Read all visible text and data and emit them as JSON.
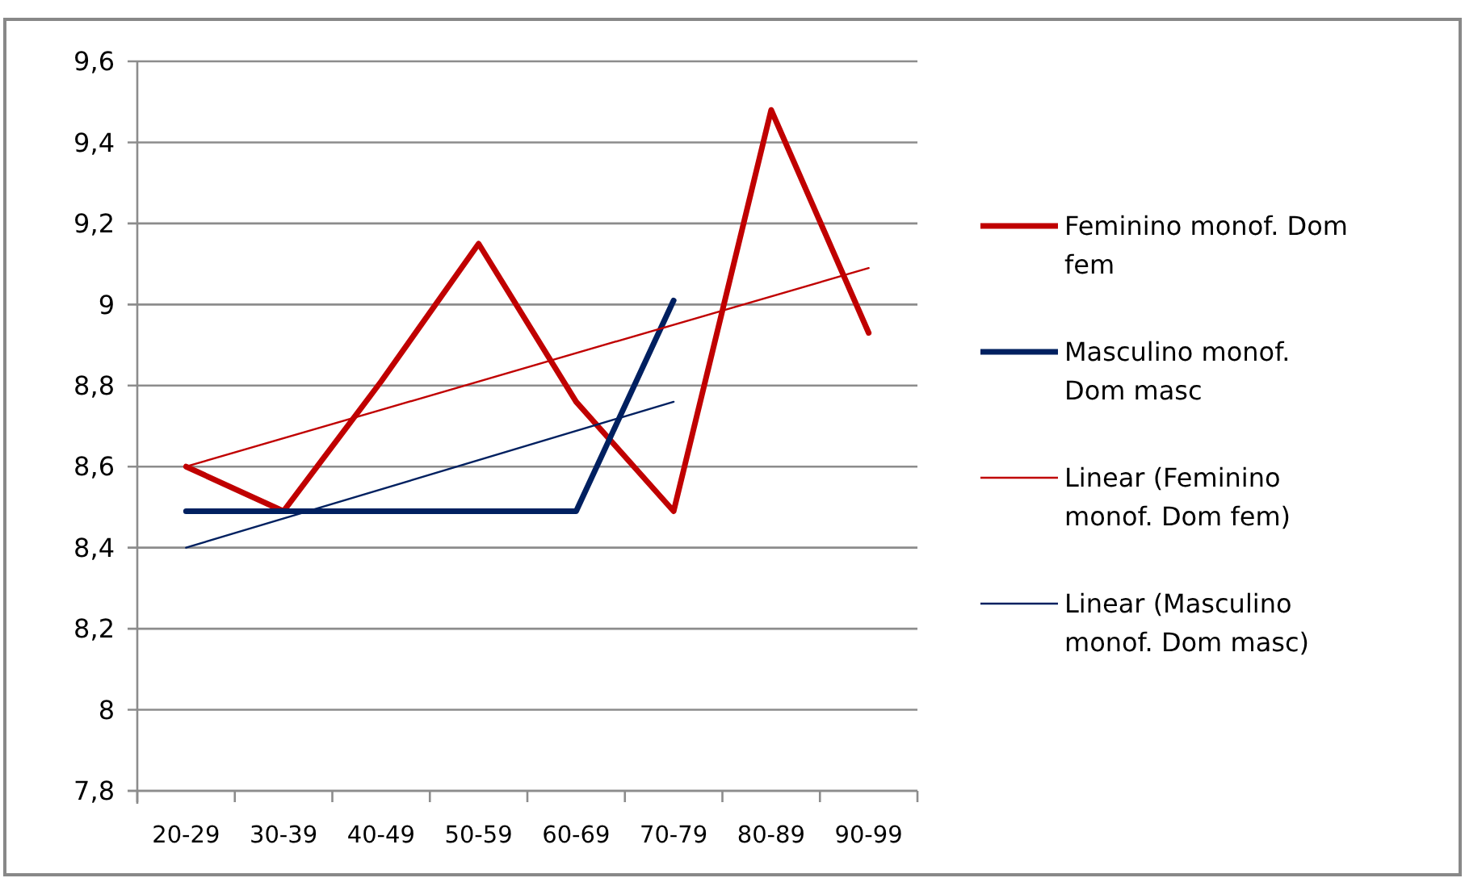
{
  "chart_data": {
    "type": "line",
    "categories": [
      "20-29",
      "30-39",
      "40-49",
      "50-59",
      "60-69",
      "70-79",
      "80-89",
      "90-99"
    ],
    "series": [
      {
        "name": "Feminino monof. Dom fem",
        "color": "#c00000",
        "values": [
          8.6,
          8.49,
          8.81,
          9.15,
          8.76,
          8.49,
          9.48,
          8.93
        ]
      },
      {
        "name": "Masculino monof. Dom masc",
        "color": "#002060",
        "values": [
          8.49,
          8.49,
          8.49,
          8.49,
          8.49,
          9.01,
          null,
          null
        ]
      },
      {
        "name": "Linear (Feminino monof. Dom fem)",
        "type": "line",
        "color": "#c00000",
        "x": [
          "20-29",
          "90-99"
        ],
        "values": [
          8.6,
          9.09
        ]
      },
      {
        "name": "Linear (Masculino monof. Dom masc)",
        "type": "line",
        "color": "#002060",
        "x": [
          "20-29",
          "70-79"
        ],
        "values": [
          8.4,
          8.76
        ]
      }
    ],
    "ylim": [
      7.8,
      9.6
    ],
    "yticks": [
      {
        "value": 7.8,
        "label": "7,8"
      },
      8,
      {
        "value": 8.2,
        "label": "8,2"
      },
      {
        "value": 8.4,
        "label": "8,4"
      },
      {
        "value": 8.6,
        "label": "8,6"
      },
      {
        "value": 8.8,
        "label": "8,8"
      },
      9,
      {
        "value": 9.2,
        "label": "9,2"
      },
      {
        "value": 9.4,
        "label": "9,4"
      },
      {
        "value": 9.6,
        "label": "9,6"
      }
    ],
    "grid": "y",
    "legend": "right",
    "line_style": "solid",
    "marker": "none"
  }
}
